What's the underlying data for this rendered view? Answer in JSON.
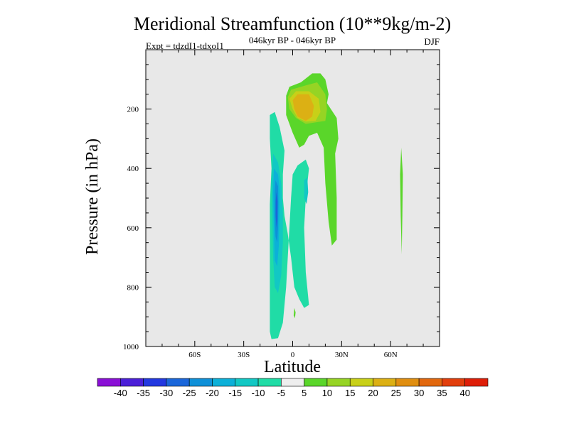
{
  "chart_data": {
    "type": "contour",
    "title": "Meridional Streamfunction (10**9kg/m-2)",
    "subtitle": "046kyr BP - 046kyr BP",
    "left_label": "Expt = tdzdI1-tdxoI1",
    "right_label": "DJF",
    "xlabel": "Latitude",
    "ylabel": "Pressure (in hPa)",
    "xlim": [
      -90,
      90
    ],
    "ylim": [
      1000,
      0
    ],
    "x_ticks": [
      {
        "value": -60,
        "label": "60S"
      },
      {
        "value": -30,
        "label": "30S"
      },
      {
        "value": 0,
        "label": "0"
      },
      {
        "value": 30,
        "label": "30N"
      },
      {
        "value": 60,
        "label": "60N"
      }
    ],
    "y_ticks": [
      {
        "value": 200,
        "label": "200"
      },
      {
        "value": 400,
        "label": "400"
      },
      {
        "value": 600,
        "label": "600"
      },
      {
        "value": 800,
        "label": "800"
      },
      {
        "value": 1000,
        "label": "1000"
      }
    ],
    "colorbar": {
      "labels": [
        "-40",
        "-35",
        "-30",
        "-25",
        "-20",
        "-15",
        "-10",
        "-5",
        "5",
        "10",
        "15",
        "20",
        "25",
        "30",
        "35",
        "40"
      ],
      "colors": [
        "#8a0fd6",
        "#4b1fd8",
        "#2238e0",
        "#1a66da",
        "#0e90d8",
        "#0cb0d8",
        "#12c8c4",
        "#20dca6",
        "#eeeeee",
        "#5ad62a",
        "#96d424",
        "#c8d018",
        "#dcb014",
        "#e08e10",
        "#e2680e",
        "#e23e0c",
        "#de1e08"
      ]
    },
    "regions": [
      {
        "name": "negative-cell-outer",
        "color_index": 7,
        "points": [
          [
            -13,
            975
          ],
          [
            -9,
            972
          ],
          [
            -6,
            920
          ],
          [
            -5,
            860
          ],
          [
            -4,
            800
          ],
          [
            -3,
            700
          ],
          [
            -2,
            600
          ],
          [
            -1,
            500
          ],
          [
            0,
            420
          ],
          [
            3,
            390
          ],
          [
            8,
            370
          ],
          [
            10,
            400
          ],
          [
            8,
            500
          ],
          [
            7,
            600
          ],
          [
            8,
            750
          ],
          [
            10,
            860
          ],
          [
            7,
            870
          ],
          [
            4,
            840
          ],
          [
            1,
            800
          ],
          [
            -1,
            700
          ],
          [
            -3,
            620
          ],
          [
            -5,
            560
          ],
          [
            -6,
            500
          ],
          [
            -6,
            420
          ],
          [
            -5,
            340
          ],
          [
            -8,
            260
          ],
          [
            -11,
            210
          ],
          [
            -14,
            220
          ],
          [
            -14,
            300
          ],
          [
            -13,
            400
          ],
          [
            -14,
            520
          ],
          [
            -14,
            700
          ],
          [
            -14,
            850
          ],
          [
            -14,
            950
          ]
        ]
      },
      {
        "name": "negative-cell-mid",
        "color_index": 6,
        "points": [
          [
            -12,
            350
          ],
          [
            -9,
            380
          ],
          [
            -7,
            450
          ],
          [
            -6,
            550
          ],
          [
            -6,
            650
          ],
          [
            -7,
            760
          ],
          [
            -9,
            820
          ],
          [
            -11,
            800
          ],
          [
            -12,
            700
          ],
          [
            -12.5,
            550
          ],
          [
            -13,
            450
          ]
        ]
      },
      {
        "name": "negative-cell-inner",
        "color_index": 5,
        "points": [
          [
            -11.5,
            400
          ],
          [
            -9,
            420
          ],
          [
            -8,
            470
          ],
          [
            -8,
            560
          ],
          [
            -8.5,
            660
          ],
          [
            -9.5,
            730
          ],
          [
            -11,
            710
          ],
          [
            -11.5,
            600
          ],
          [
            -12,
            480
          ]
        ]
      },
      {
        "name": "negative-cell-core",
        "color_index": 4,
        "points": [
          [
            -10.5,
            440
          ],
          [
            -9,
            460
          ],
          [
            -8.8,
            520
          ],
          [
            -9,
            600
          ],
          [
            -9.5,
            650
          ],
          [
            -10.5,
            630
          ],
          [
            -11,
            560
          ],
          [
            -11,
            480
          ]
        ]
      },
      {
        "name": "negative-cell-peak",
        "color_index": 3,
        "points": [
          [
            -10,
            480
          ],
          [
            -9.3,
            510
          ],
          [
            -9.4,
            570
          ],
          [
            -10,
            600
          ],
          [
            -10.4,
            560
          ],
          [
            -10.4,
            510
          ]
        ]
      },
      {
        "name": "negative-side-lobe",
        "color_index": 6,
        "points": [
          [
            7,
            440
          ],
          [
            9,
            430
          ],
          [
            9.5,
            480
          ],
          [
            8.5,
            520
          ],
          [
            7,
            500
          ]
        ]
      },
      {
        "name": "positive-cell-outer",
        "color_index": 9,
        "points": [
          [
            -4,
            155
          ],
          [
            -2,
            125
          ],
          [
            5,
            110
          ],
          [
            12,
            80
          ],
          [
            17,
            80
          ],
          [
            20,
            100
          ],
          [
            22,
            150
          ],
          [
            21,
            180
          ],
          [
            27,
            230
          ],
          [
            28,
            300
          ],
          [
            26,
            350
          ],
          [
            27,
            500
          ],
          [
            27,
            640
          ],
          [
            24,
            660
          ],
          [
            22,
            580
          ],
          [
            20,
            450
          ],
          [
            19,
            330
          ],
          [
            15,
            280
          ],
          [
            10,
            290
          ],
          [
            7,
            320
          ],
          [
            4,
            330
          ],
          [
            0,
            280
          ],
          [
            -4,
            220
          ]
        ]
      },
      {
        "name": "positive-cell-mid",
        "color_index": 10,
        "points": [
          [
            -3,
            160
          ],
          [
            -1,
            135
          ],
          [
            8,
            120
          ],
          [
            15,
            110
          ],
          [
            20,
            150
          ],
          [
            21,
            200
          ],
          [
            20,
            240
          ],
          [
            14,
            245
          ],
          [
            8,
            250
          ],
          [
            2,
            230
          ],
          [
            -2,
            200
          ]
        ]
      },
      {
        "name": "positive-cell-inner",
        "color_index": 11,
        "points": [
          [
            -2,
            165
          ],
          [
            2,
            140
          ],
          [
            10,
            140
          ],
          [
            16,
            165
          ],
          [
            17,
            210
          ],
          [
            14,
            240
          ],
          [
            8,
            242
          ],
          [
            3,
            230
          ],
          [
            0,
            200
          ]
        ]
      },
      {
        "name": "positive-cell-core",
        "color_index": 12,
        "points": [
          [
            0,
            170
          ],
          [
            3,
            150
          ],
          [
            10,
            150
          ],
          [
            13,
            190
          ],
          [
            12,
            225
          ],
          [
            8,
            240
          ],
          [
            3,
            225
          ],
          [
            1,
            200
          ]
        ]
      },
      {
        "name": "positive-high-lat-sliver",
        "color_index": 9,
        "points": [
          [
            66.5,
            330
          ],
          [
            67.5,
            420
          ],
          [
            67.2,
            560
          ],
          [
            66.8,
            690
          ],
          [
            66.2,
            560
          ],
          [
            65.8,
            420
          ]
        ]
      },
      {
        "name": "positive-surface-speck",
        "color_index": 9,
        "points": [
          [
            1,
            870
          ],
          [
            1.8,
            885
          ],
          [
            1.4,
            905
          ],
          [
            0.6,
            895
          ]
        ]
      }
    ]
  }
}
